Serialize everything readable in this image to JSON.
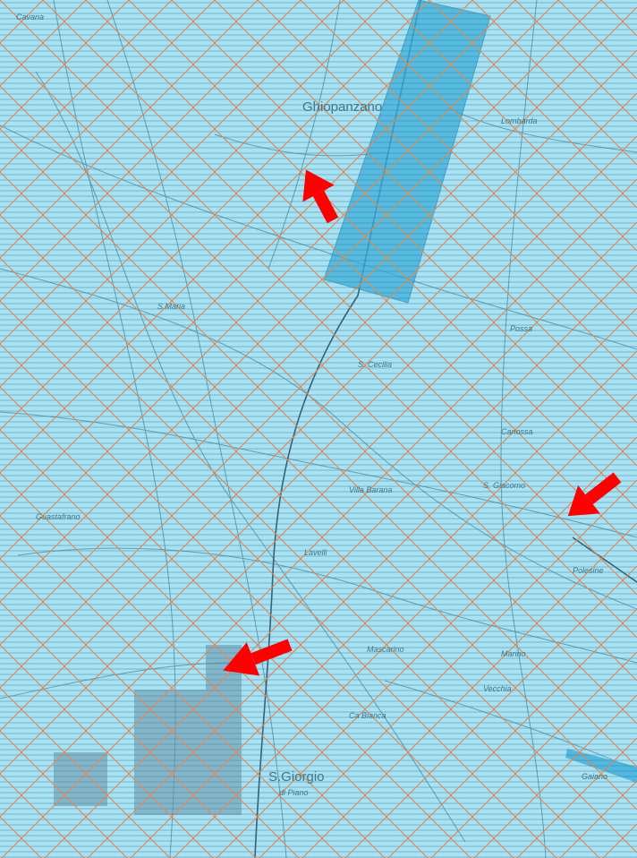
{
  "map": {
    "labels": {
      "giovanzano": "Ghiopanzano",
      "santa_maria": "S.Maria",
      "lombarda": "Lombarda",
      "s_cecilia": "S. Cecilia",
      "lavelli": "Lavelli",
      "s_giorgio": "S.Giorgio",
      "di_piano": "di Piano",
      "villa_barana": "Villa Barana",
      "possa": "Possa",
      "ca_bianca": "Ca Bianca",
      "mascarino": "Mascarino",
      "marino": "Marino",
      "vecchia": "Vecchia",
      "gaiano": "Gaiano",
      "s_giacomo": "S. Giacomo",
      "guastafrano": "Guastafrano",
      "canossa": "Canossa",
      "cavana": "Cavana",
      "polesine": "Polesine"
    },
    "colors": {
      "background": "#a8e2f3",
      "hatch_lines": "#2f6f8f",
      "cross_grid": "#d98a5a",
      "highlight_zone": "#3aaedc",
      "arrow": "#ff0000"
    },
    "arrows": [
      {
        "name": "arrow-north",
        "direction": "up-left"
      },
      {
        "name": "arrow-east",
        "direction": "down-left"
      },
      {
        "name": "arrow-south",
        "direction": "left"
      }
    ]
  }
}
